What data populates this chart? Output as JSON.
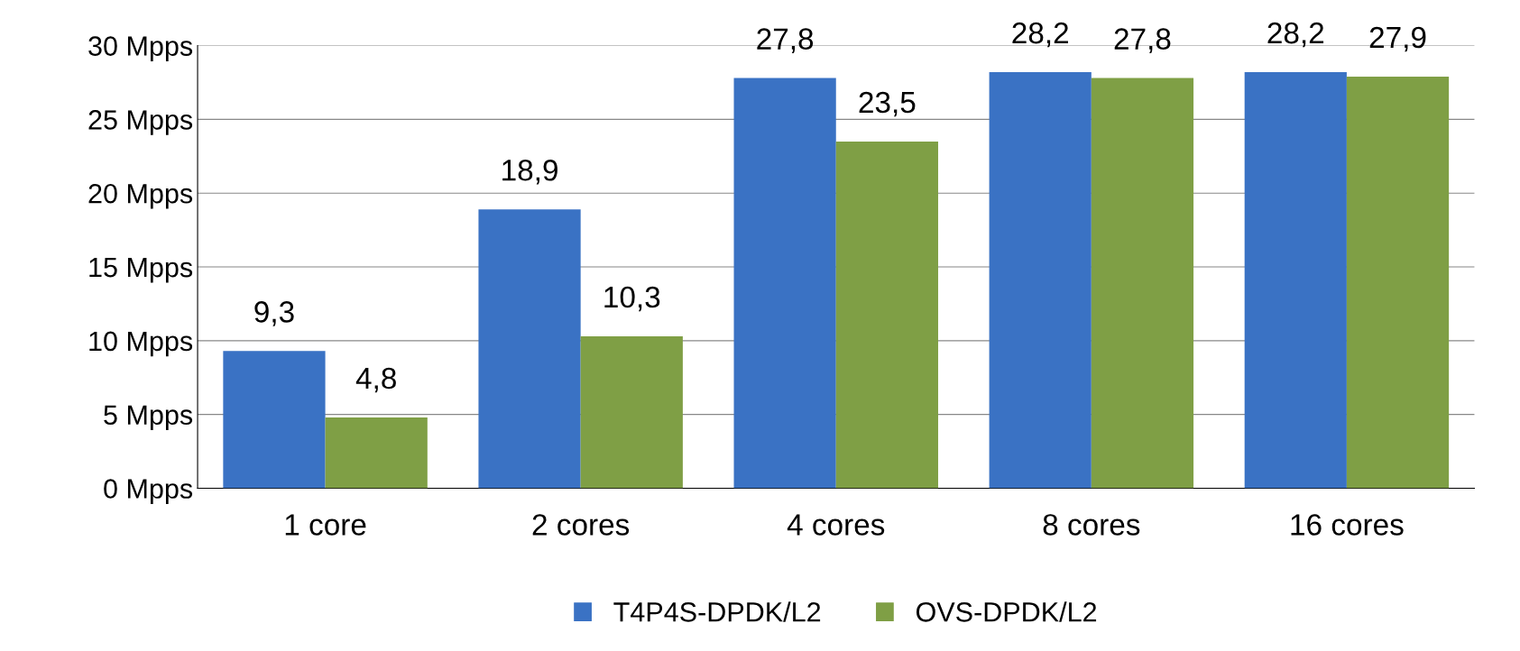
{
  "chart_data": {
    "type": "bar",
    "categories": [
      "1 core",
      "2 cores",
      "4 cores",
      "8 cores",
      "16 cores"
    ],
    "series": [
      {
        "name": "T4P4S-DPDK/L2",
        "color": "#3a72c4",
        "values": [
          9.3,
          18.9,
          27.8,
          28.2,
          28.2
        ],
        "value_labels": [
          "9,3",
          "18,9",
          "27,8",
          "28,2",
          "28,2"
        ]
      },
      {
        "name": "OVS-DPDK/L2",
        "color": "#7f9f45",
        "values": [
          4.8,
          10.3,
          23.5,
          27.8,
          27.9
        ],
        "value_labels": [
          "4,8",
          "10,3",
          "23,5",
          "27,8",
          "27,9"
        ]
      }
    ],
    "ylim": [
      0,
      30
    ],
    "yticks": [
      {
        "value": 0,
        "label": "0 Mpps"
      },
      {
        "value": 5,
        "label": "5 Mpps"
      },
      {
        "value": 10,
        "label": "10 Mpps"
      },
      {
        "value": 15,
        "label": "15 Mpps"
      },
      {
        "value": 20,
        "label": "20 Mpps"
      },
      {
        "value": 25,
        "label": "25 Mpps"
      },
      {
        "value": 30,
        "label": "30 Mpps"
      }
    ],
    "grid": "y",
    "legend": "bottom"
  }
}
